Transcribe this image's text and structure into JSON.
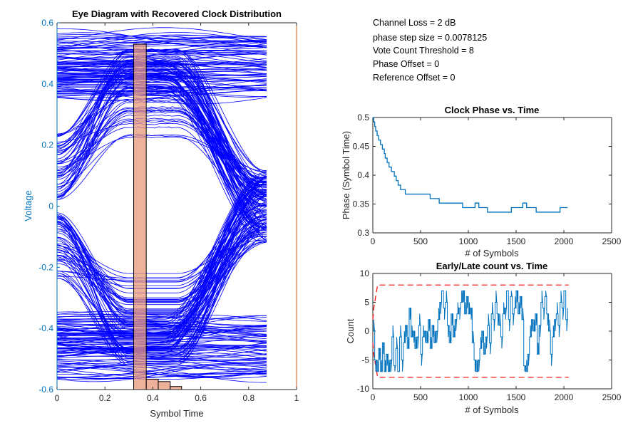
{
  "info_panel": {
    "lines": [
      "Channel Loss = 2 dB",
      "phase step size = 0.0078125",
      "Vote Count Threshold = 8",
      "Phase Offset = 0",
      "Reference Offset = 0"
    ]
  },
  "colors": {
    "eye_trace": "#0000ff",
    "histogram_fill": "#e8987a",
    "axis_blue": "#0072bd",
    "axis_orange": "#d95319",
    "series_blue": "#0072bd",
    "threshold_red": "#ff0000",
    "axis_dark": "#262626"
  },
  "chart_data": [
    {
      "type": "line",
      "name": "eye-diagram",
      "title": "Eye Diagram with Recovered Clock Distribution",
      "xlabel": "Symbol Time",
      "ylabel": "Voltage",
      "xlim": [
        0,
        1
      ],
      "ylim": [
        -0.6,
        0.6
      ],
      "xticks": [
        "0",
        "0.2",
        "0.4",
        "0.6",
        "0.8",
        "1"
      ],
      "xtick_values": [
        0,
        0.2,
        0.4,
        0.6,
        0.8,
        1
      ],
      "yticks": [
        "-0.6",
        "-0.4",
        "-0.2",
        "0",
        "0.2",
        "0.4",
        "0.6"
      ],
      "ytick_values": [
        -0.6,
        -0.4,
        -0.2,
        0,
        0.2,
        0.4,
        0.6
      ],
      "eye": {
        "x_end": 0.875,
        "high_band": [
          0.36,
          0.56
        ],
        "low_band": [
          -0.56,
          -0.36
        ],
        "crossing_x": 0.76,
        "eye_open_at_0": [
          -0.02,
          0.02
        ]
      },
      "histogram": {
        "bin_edges": [
          0.32,
          0.3725,
          0.4225,
          0.4725,
          0.52
        ],
        "heights_fraction": [
          0.9417,
          0.0283,
          0.0217,
          0.0083
        ],
        "grid": false
      }
    },
    {
      "type": "line",
      "name": "clock-phase",
      "title": "Clock Phase vs. Time",
      "xlabel": "# of Symbols",
      "ylabel": "Phase (Symbol Time)",
      "xlim": [
        0,
        2500
      ],
      "ylim": [
        0.3,
        0.5
      ],
      "xticks": [
        "0",
        "500",
        "1000",
        "1500",
        "2000",
        "2500"
      ],
      "xtick_values": [
        0,
        500,
        1000,
        1500,
        2000,
        2500
      ],
      "yticks": [
        "0.3",
        "0.35",
        "0.4",
        "0.45",
        "0.5"
      ],
      "ytick_values": [
        0.3,
        0.35,
        0.4,
        0.45,
        0.5
      ],
      "series": [
        {
          "name": "phase",
          "x": [
            0,
            10,
            20,
            30,
            45,
            60,
            80,
            100,
            120,
            130,
            150,
            170,
            195,
            225,
            245,
            265,
            290,
            340,
            600,
            695,
            940,
            1070,
            1110,
            1200,
            1450,
            1570,
            1610,
            1710,
            1960,
            2040
          ],
          "y": [
            0.5,
            0.4922,
            0.4844,
            0.4766,
            0.4688,
            0.4609,
            0.4531,
            0.4453,
            0.4375,
            0.4297,
            0.4219,
            0.4141,
            0.4063,
            0.3984,
            0.3906,
            0.3828,
            0.375,
            0.3672,
            0.3594,
            0.3516,
            0.3438,
            0.3516,
            0.3438,
            0.3359,
            0.3438,
            0.3516,
            0.3438,
            0.3359,
            0.3438,
            0.3438
          ]
        }
      ]
    },
    {
      "type": "line",
      "name": "early-late-count",
      "title": "Early/Late count vs. Time",
      "xlabel": "# of Symbols",
      "ylabel": "Count",
      "xlim": [
        0,
        2500
      ],
      "ylim": [
        -10,
        10
      ],
      "xticks": [
        "0",
        "500",
        "1000",
        "1500",
        "2000",
        "2500"
      ],
      "xtick_values": [
        0,
        500,
        1000,
        1500,
        2000,
        2500
      ],
      "yticks": [
        "-10",
        "-5",
        "0",
        "5",
        "10"
      ],
      "ytick_values": [
        -10,
        -5,
        0,
        5,
        10
      ],
      "threshold": {
        "upper": 8,
        "lower": -8,
        "ramp_end_x": 50,
        "x_end": 2050
      },
      "series": [
        {
          "name": "count",
          "x": [
            0,
            20,
            40,
            60,
            80,
            100,
            120,
            140,
            160,
            180,
            200,
            220,
            240,
            260,
            280,
            300,
            320,
            340,
            360,
            380,
            400,
            420,
            440,
            460,
            480,
            500,
            520,
            540,
            560,
            580,
            600,
            620,
            640,
            660,
            680,
            700,
            720,
            740,
            760,
            780,
            800,
            820,
            840,
            860,
            880,
            900,
            920,
            940,
            960,
            980,
            1000,
            1020,
            1040,
            1060,
            1080,
            1100,
            1120,
            1140,
            1160,
            1180,
            1200,
            1220,
            1240,
            1260,
            1280,
            1300,
            1320,
            1340,
            1360,
            1380,
            1400,
            1420,
            1440,
            1460,
            1480,
            1500,
            1520,
            1540,
            1560,
            1580,
            1600,
            1620,
            1640,
            1660,
            1680,
            1700,
            1720,
            1740,
            1760,
            1780,
            1800,
            1820,
            1840,
            1860,
            1880,
            1900,
            1920,
            1940,
            1960,
            1980,
            2000,
            2020,
            2040
          ],
          "y": [
            0,
            -5,
            -7,
            -3,
            -7,
            -2,
            -7,
            -4,
            -7,
            -5,
            -1,
            -6,
            -3,
            -7,
            -1,
            -5,
            -2,
            1,
            -3,
            4,
            -1,
            0,
            -3,
            -1,
            1,
            -4,
            -1,
            0,
            -2,
            2,
            -3,
            1,
            -2,
            0,
            2,
            5,
            7,
            4,
            5,
            1,
            -2,
            3,
            -1,
            2,
            3,
            4,
            5,
            7,
            3,
            6,
            3,
            4,
            -2,
            -5,
            -7,
            -5,
            -3,
            0,
            -4,
            -1,
            1,
            -2,
            3,
            2,
            5,
            3,
            1,
            -1,
            3,
            4,
            7,
            2,
            6,
            3,
            4,
            7,
            3,
            6,
            2,
            -6,
            -7,
            -4,
            -1,
            2,
            0,
            3,
            -4,
            1,
            5,
            4,
            6,
            3,
            0,
            -4,
            -1,
            2,
            3,
            1,
            5,
            4,
            7,
            2,
            4
          ]
        }
      ]
    }
  ]
}
